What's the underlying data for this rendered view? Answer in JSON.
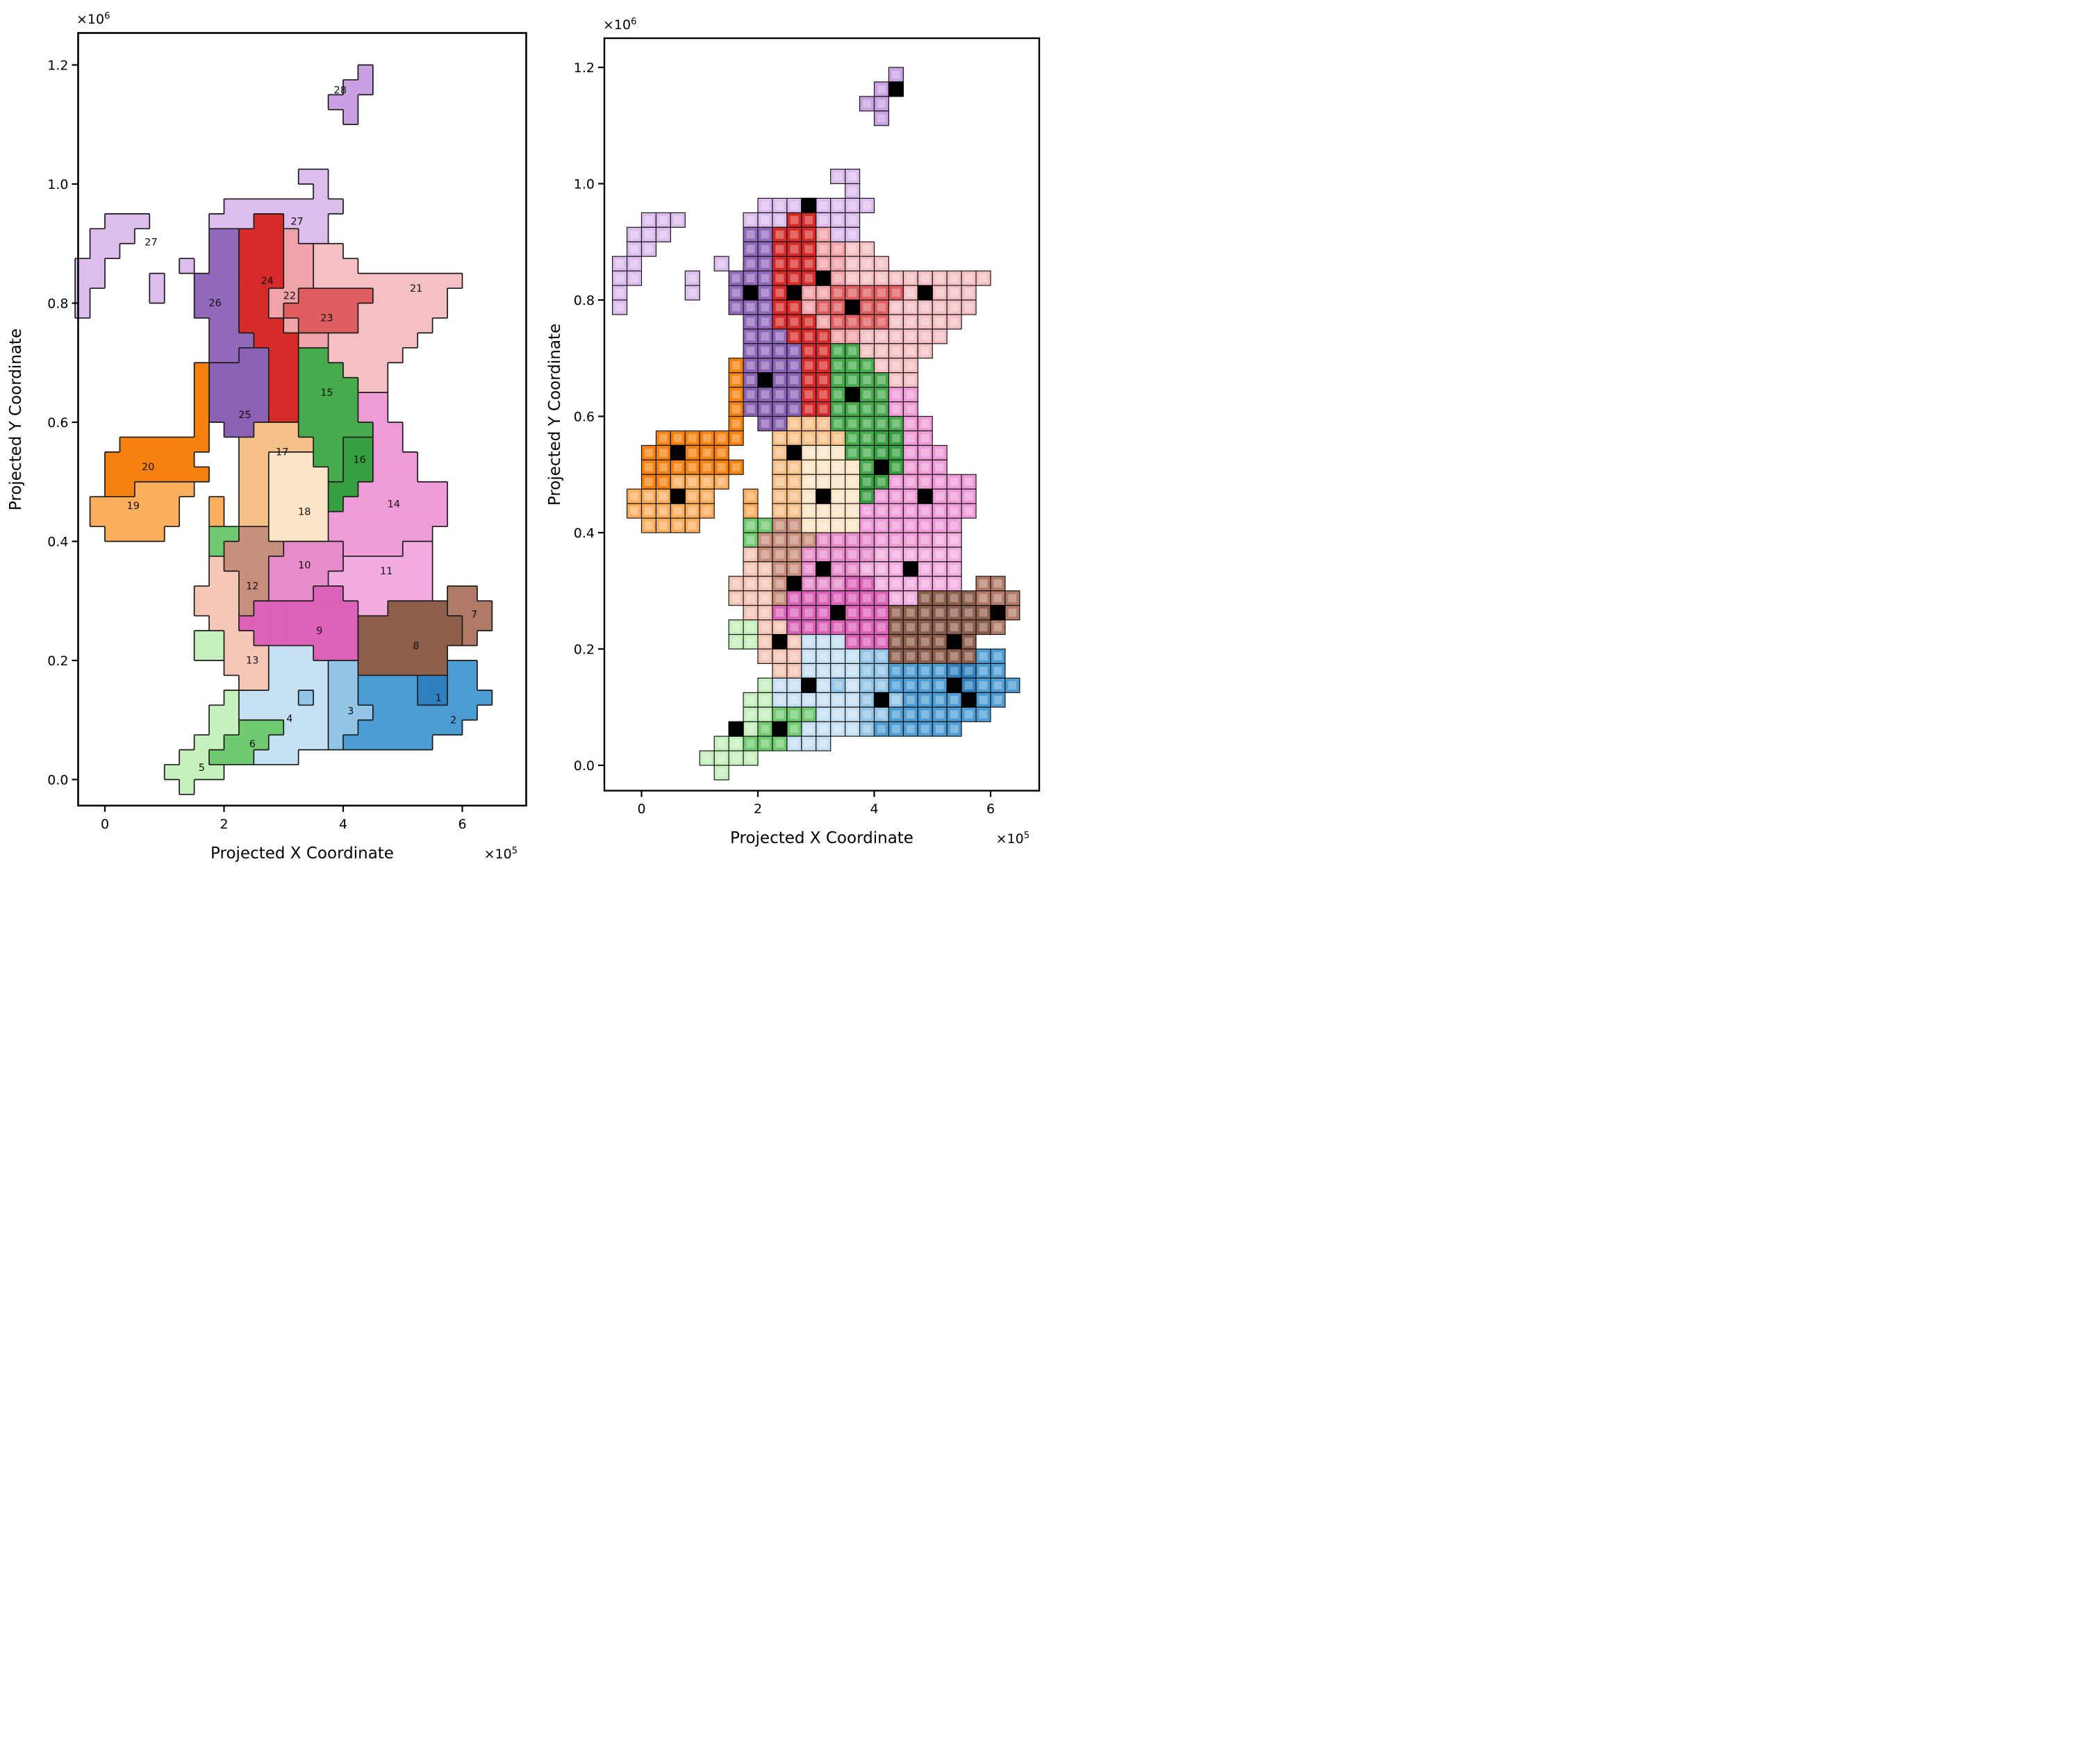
{
  "figure": {
    "background": "#ffffff",
    "xlabel": "Projected X Coordinate",
    "ylabel": "Projected Y Coordinate",
    "x_offset": {
      "base": "×10",
      "exp": "5"
    },
    "y_offset": {
      "base": "×10",
      "exp": "6"
    },
    "x_ticks": {
      "labels": [
        "0",
        "2",
        "4",
        "6"
      ],
      "values_1e5": [
        0,
        2,
        4,
        6
      ]
    },
    "y_ticks": {
      "labels": [
        "0.0",
        "0.2",
        "0.4",
        "0.6",
        "0.8",
        "1.0",
        "1.2"
      ],
      "values_1e5": [
        0,
        2,
        4,
        6,
        8,
        10,
        12
      ]
    }
  },
  "chart_data": {
    "type": "map",
    "n_regions": 28,
    "description": "Two-panel map of Great Britain and Northern Ireland in projected coordinates. Left panel: 28 numbered cluster regions drawn as merged colored areas with black outlines and numeric labels. Right panel: the same regions drawn as a lattice of small grid cells with black outlines; one solid black (medoid) cell per region.",
    "x_range_units": [
      -50000,
      700000
    ],
    "y_range_units": [
      0,
      1250000
    ],
    "grid": {
      "cols": 30,
      "rows": 51,
      "cell_units": 25000,
      "x0_units": -50000,
      "ytop_units": 1250000,
      "codes": "123456789ABCDEFGHIJKLMNOPQRS",
      "rows_map": [
        "..............................",
        "..............................",
        "...................S..........",
        "..................SS..........",
        ".................SS...........",
        "..................S...........",
        "..............................",
        "..............................",
        "..............................",
        "...............RR.............",
        "................R.............",
        "..........RRRRRRRR............",
        "..RRR....RRROORRR.............",
        ".RRR.....QQOOOMRR.............",
        ".RR......QQOOOMMLL............",
        "RR.....R.QQOOOMMLLL...........",
        "RR...R..QQQOOOMMLLLLLLLLLL....",
        "R....R..QQQOOMMNNNNNLLLLL.....",
        "R.......QQQOOMNNNNNLLLLLL.....",
        ".........QQOOOMNNNNLLLLL......",
        ".........QQQOOOMMLLLLLL.......",
        ".........QQPPOOFFLLLLL........",
        "........KPPPPOOFFFLLL.........",
        "........KPPPPOOFFFFLL.........",
        "........KPPPPOOFFFFEE.........",
        "........KPPPPOOFFFFEE.........",
        "........K.PPHHHFFFFFEE........",
        "...KKKKKK..HHHHHFFGGEE........",
        "..KKKKKK...HHIIIFFGGEEE.......",
        "..KKKKKKK..HHIIIIFGGEEE.......",
        "..KKJJJJ...HHIIIIGGEEEEEE.....",
        ".JJJJJJ..J.HHIIIIGEEEEEEE.....",
        ".JJJJJJ..J.HHIIIIEEEEEEEE.....",
        "..JJJJ...66CCIIIIEEEEEEE......",
        ".........6CCCCAAAAEEEEBB......",
        ".........DCCCAAAAABBBBBB......",
        ".........DDCCAAAABBBBBBB......",
        "........DDDCCAAA99BBBBBB.77...",
        "........DDDC9999999BB8888777..",
        ".........DD99999999888888877..",
        "........55DD999999988888887...",
        "........55DDD444999888888.....",
        "..........DDD44443388888822...",
        "...........DD44443322221122...",
        "..........544443433222211222..",
        ".........554444443332222222...",
        ".........55666444332222222....",
        "........5566644443222222......",
        ".......55666444...............",
        "......5555....................",
        ".......5......................"
      ]
    },
    "regions": [
      {
        "id": 1,
        "code": "1",
        "color": "#2f7fbe",
        "labels": [
          {
            "text": "1",
            "rc": [
              43.9,
              23.9
            ]
          }
        ],
        "medoid_rc": [
          44,
          23
        ]
      },
      {
        "id": 2,
        "code": "2",
        "color": "#4d9cd3",
        "labels": [
          {
            "text": "2",
            "rc": [
              45.4,
              24.9
            ]
          }
        ],
        "medoid_rc": [
          45,
          24
        ]
      },
      {
        "id": 3,
        "code": "3",
        "color": "#92c5e6",
        "labels": [
          {
            "text": "3",
            "rc": [
              44.8,
              18.0
            ]
          }
        ],
        "medoid_rc": [
          45,
          18
        ]
      },
      {
        "id": 4,
        "code": "4",
        "color": "#c6e0f4",
        "labels": [
          {
            "text": "4",
            "rc": [
              45.3,
              13.9
            ]
          }
        ],
        "medoid_rc": [
          44,
          13
        ]
      },
      {
        "id": 5,
        "code": "5",
        "color": "#c6f0bd",
        "labels": [
          {
            "text": "5",
            "rc": [
              48.6,
              8.0
            ]
          }
        ],
        "medoid_rc": [
          47,
          8
        ]
      },
      {
        "id": 6,
        "code": "6",
        "color": "#70ca70",
        "labels": [
          {
            "text": "6",
            "rc": [
              47.0,
              11.4
            ]
          }
        ],
        "medoid_rc": [
          47,
          11
        ]
      },
      {
        "id": 7,
        "code": "7",
        "color": "#b17a66",
        "labels": [
          {
            "text": "7",
            "rc": [
              38.3,
              26.3
            ]
          }
        ],
        "medoid_rc": [
          39,
          26
        ]
      },
      {
        "id": 8,
        "code": "8",
        "color": "#8e5e4c",
        "labels": [
          {
            "text": "8",
            "rc": [
              40.4,
              22.4
            ]
          }
        ],
        "medoid_rc": [
          41,
          23
        ]
      },
      {
        "id": 9,
        "code": "9",
        "color": "#dc61b8",
        "labels": [
          {
            "text": "9",
            "rc": [
              39.4,
              15.9
            ]
          }
        ],
        "medoid_rc": [
          39,
          15
        ]
      },
      {
        "id": 10,
        "code": "A",
        "color": "#e78bcb",
        "labels": [
          {
            "text": "10",
            "rc": [
              35.0,
              14.9
            ]
          }
        ],
        "medoid_rc": [
          36,
          14
        ]
      },
      {
        "id": 11,
        "code": "B",
        "color": "#f3acdf",
        "labels": [
          {
            "text": "11",
            "rc": [
              35.4,
              20.4
            ]
          }
        ],
        "medoid_rc": [
          36,
          20
        ]
      },
      {
        "id": 12,
        "code": "C",
        "color": "#c98f7d",
        "labels": [
          {
            "text": "12",
            "rc": [
              36.4,
              11.4
            ]
          }
        ],
        "medoid_rc": [
          37,
          12
        ]
      },
      {
        "id": 13,
        "code": "D",
        "color": "#f5c5b6",
        "labels": [
          {
            "text": "13",
            "rc": [
              41.4,
              11.4
            ]
          }
        ],
        "medoid_rc": [
          41,
          11
        ]
      },
      {
        "id": 14,
        "code": "E",
        "color": "#ef9bd7",
        "labels": [
          {
            "text": "14",
            "rc": [
              30.9,
              20.9
            ]
          }
        ],
        "medoid_rc": [
          31,
          21
        ]
      },
      {
        "id": 15,
        "code": "F",
        "color": "#47ab4e",
        "labels": [
          {
            "text": "15",
            "rc": [
              23.4,
              16.4
            ]
          }
        ],
        "medoid_rc": [
          24,
          16
        ]
      },
      {
        "id": 16,
        "code": "G",
        "color": "#379f3f",
        "labels": [
          {
            "text": "16",
            "rc": [
              27.9,
              18.6
            ]
          }
        ],
        "medoid_rc": [
          29,
          18
        ]
      },
      {
        "id": 17,
        "code": "H",
        "color": "#f6c189",
        "labels": [
          {
            "text": "17",
            "rc": [
              27.4,
              13.4
            ]
          }
        ],
        "medoid_rc": [
          28,
          12
        ]
      },
      {
        "id": 18,
        "code": "I",
        "color": "#fae5c6",
        "labels": [
          {
            "text": "18",
            "rc": [
              31.4,
              14.9
            ]
          }
        ],
        "medoid_rc": [
          31,
          14
        ]
      },
      {
        "id": 19,
        "code": "J",
        "color": "#fbae5e",
        "labels": [
          {
            "text": "19",
            "rc": [
              31.0,
              3.4
            ]
          }
        ],
        "medoid_rc": [
          31,
          4
        ]
      },
      {
        "id": 20,
        "code": "K",
        "color": "#f5820e",
        "labels": [
          {
            "text": "20",
            "rc": [
              28.4,
              4.4
            ]
          }
        ],
        "medoid_rc": [
          28,
          4
        ]
      },
      {
        "id": 21,
        "code": "L",
        "color": "#f5c0c4",
        "labels": [
          {
            "text": "21",
            "rc": [
              16.4,
              22.4
            ]
          }
        ],
        "medoid_rc": [
          17,
          21
        ]
      },
      {
        "id": 22,
        "code": "M",
        "color": "#f0a3a8",
        "labels": [
          {
            "text": "22",
            "rc": [
              16.9,
              13.9
            ]
          }
        ],
        "medoid_rc": [
          16,
          14
        ]
      },
      {
        "id": 23,
        "code": "N",
        "color": "#df5e60",
        "labels": [
          {
            "text": "23",
            "rc": [
              18.4,
              16.4
            ]
          }
        ],
        "medoid_rc": [
          18,
          16
        ]
      },
      {
        "id": 24,
        "code": "O",
        "color": "#d62b29",
        "labels": [
          {
            "text": "24",
            "rc": [
              15.9,
              12.4
            ]
          }
        ],
        "medoid_rc": [
          17,
          12
        ]
      },
      {
        "id": 25,
        "code": "P",
        "color": "#8b62b3",
        "labels": [
          {
            "text": "25",
            "rc": [
              24.9,
              10.9
            ]
          }
        ],
        "medoid_rc": [
          23,
          10
        ]
      },
      {
        "id": 26,
        "code": "Q",
        "color": "#9169ba",
        "labels": [
          {
            "text": "26",
            "rc": [
              17.4,
              8.9
            ]
          }
        ],
        "medoid_rc": [
          17,
          9
        ]
      },
      {
        "id": 27,
        "code": "R",
        "color": "#dcbdee",
        "labels": [
          {
            "text": "27",
            "rc": [
              13.3,
              4.6
            ]
          },
          {
            "text": "27",
            "rc": [
              11.9,
              14.4
            ]
          }
        ],
        "medoid_rc": [
          11,
          13
        ]
      },
      {
        "id": 28,
        "code": "S",
        "color": "#c9a1e2",
        "labels": [
          {
            "text": "28",
            "rc": [
              3.1,
              17.3
            ]
          }
        ],
        "medoid_rc": [
          3,
          19
        ]
      }
    ],
    "panels": [
      {
        "name": "region-map",
        "style": "outlined regions with numeric labels"
      },
      {
        "name": "gridded-map",
        "style": "grid cells with black borders and one black medoid cell per region"
      }
    ]
  }
}
